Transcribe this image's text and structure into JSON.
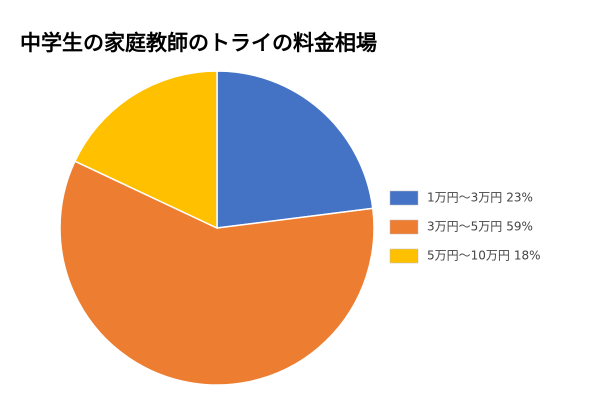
{
  "chart_data": {
    "type": "pie",
    "title": "中学生の家庭教師のトライの料金相場",
    "categories": [
      "1万円〜3万円",
      "3万円〜5万円",
      "5万円〜10万円"
    ],
    "values": [
      23,
      59,
      18
    ],
    "value_labels": [
      "23%",
      "59%",
      "18%"
    ],
    "colors": [
      "#4472c4",
      "#ed7d31",
      "#ffc000"
    ],
    "legend": "right"
  }
}
